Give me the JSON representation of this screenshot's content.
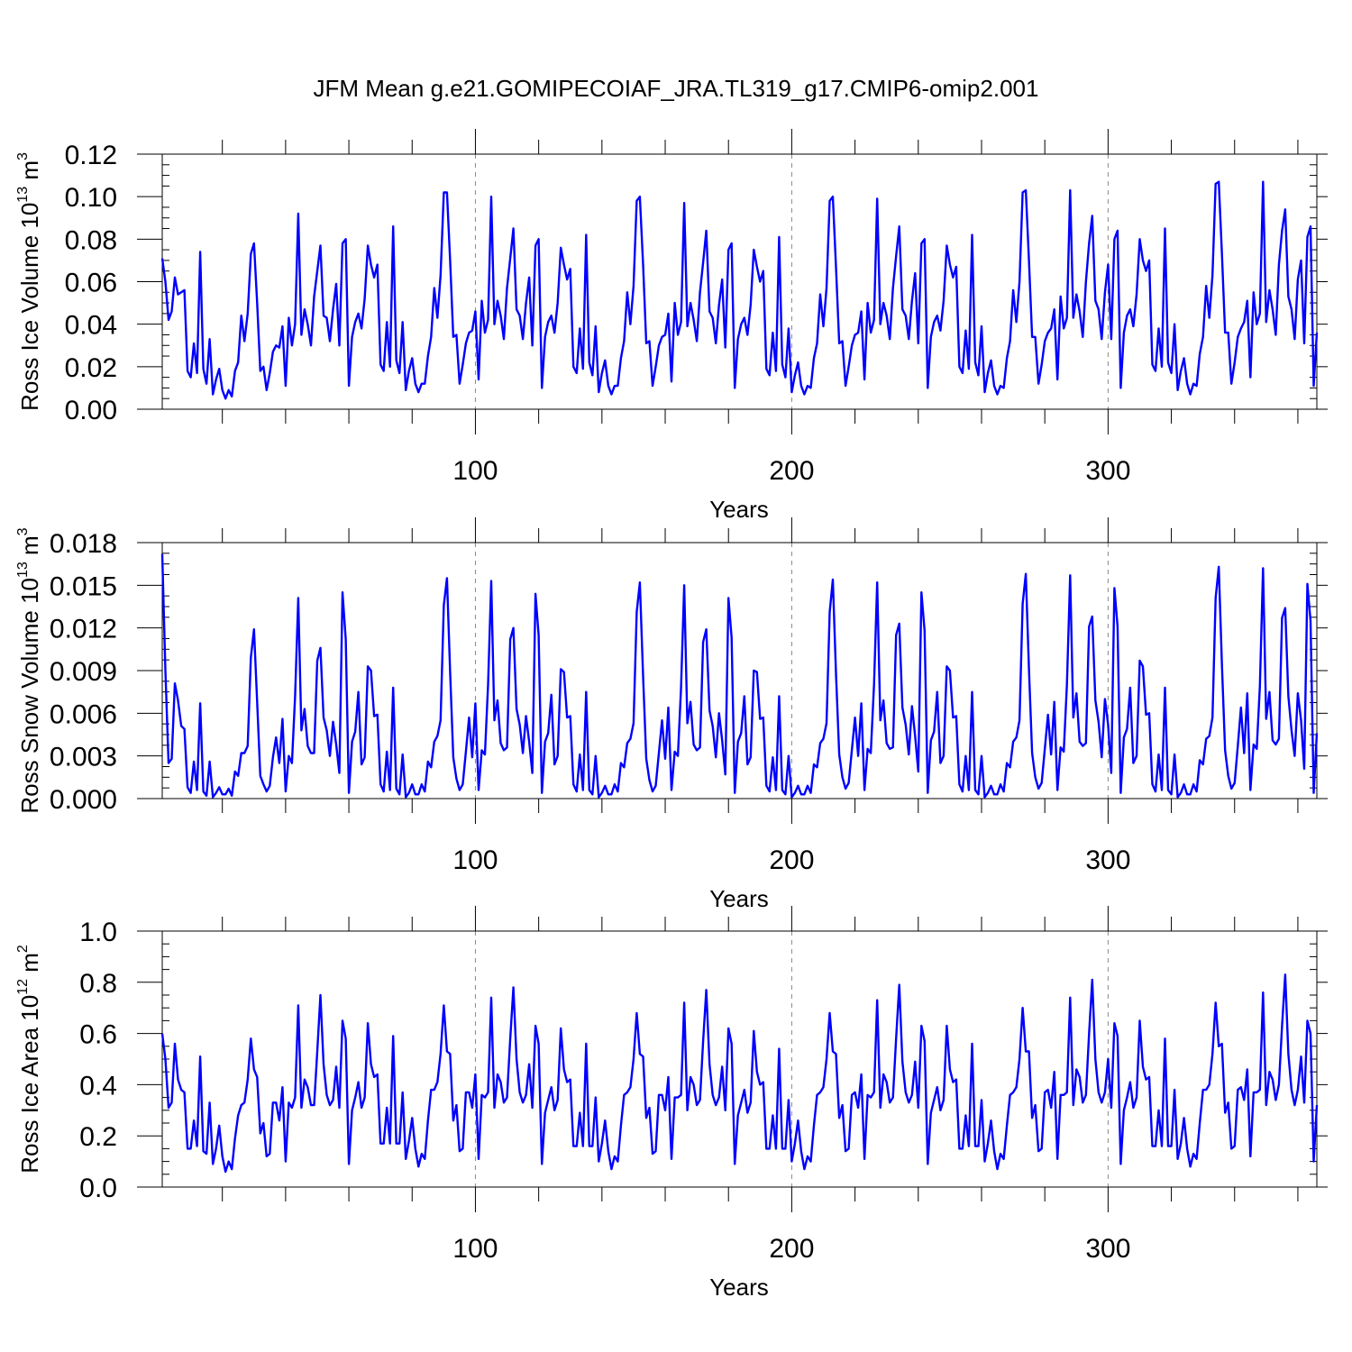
{
  "title": "JFM Mean g.e21.GOMIPECOIAF_JRA.TL319_g17.CMIP6-omip2.001",
  "chart_data": [
    {
      "type": "line",
      "xlabel": "Years",
      "ylabel": "Ross Ice Volume 10",
      "ylabel_sup": "13",
      "ylabel_unit": " m",
      "ylabel_unit_sup": "3",
      "xlim": [
        1,
        366
      ],
      "ylim": [
        0,
        0.12
      ],
      "yticks": [
        "0.00",
        "0.02",
        "0.04",
        "0.06",
        "0.08",
        "0.10",
        "0.12"
      ],
      "xticks": [
        "100",
        "200",
        "300"
      ],
      "color": "#0000ff",
      "values": [
        0.071,
        0.06,
        0.042,
        0.046,
        0.062,
        0.054,
        0.055,
        0.056,
        0.018,
        0.015,
        0.031,
        0.017,
        0.074,
        0.019,
        0.012,
        0.033,
        0.007,
        0.014,
        0.019,
        0.009,
        0.005,
        0.009,
        0.006,
        0.018,
        0.022,
        0.044,
        0.032,
        0.045,
        0.073,
        0.078,
        0.05,
        0.018,
        0.02,
        0.009,
        0.017,
        0.027,
        0.03,
        0.029,
        0.039,
        0.011,
        0.043,
        0.03,
        0.04,
        0.092,
        0.035,
        0.047,
        0.04,
        0.03,
        0.053,
        0.065,
        0.077,
        0.044,
        0.043,
        0.032,
        0.047,
        0.059,
        0.03,
        0.078,
        0.08,
        0.011,
        0.034,
        0.041,
        0.045,
        0.038,
        0.052,
        0.077,
        0.068,
        0.062,
        0.068,
        0.021,
        0.018,
        0.041,
        0.02,
        0.086,
        0.023,
        0.017,
        0.041,
        0.009,
        0.018,
        0.024,
        0.012,
        0.008,
        0.012,
        0.012,
        0.025,
        0.034,
        0.057,
        0.043,
        0.063,
        0.102,
        0.102,
        0.07,
        0.034,
        0.035,
        0.012,
        0.021,
        0.031,
        0.036,
        0.037,
        0.046,
        0.014,
        0.051,
        0.036,
        0.042,
        0.1,
        0.04,
        0.051,
        0.044,
        0.033,
        0.057,
        0.071,
        0.085,
        0.047,
        0.044,
        0.033,
        0.05,
        0.062,
        0.03,
        0.077,
        0.08,
        0.01,
        0.034,
        0.041,
        0.044,
        0.036,
        0.05,
        0.076,
        0.068,
        0.061,
        0.066,
        0.02,
        0.017,
        0.038,
        0.019,
        0.082,
        0.022,
        0.016,
        0.039,
        0.008,
        0.017,
        0.023,
        0.011,
        0.007,
        0.011,
        0.011,
        0.024,
        0.032,
        0.055,
        0.04,
        0.058,
        0.098,
        0.1,
        0.068,
        0.031,
        0.032,
        0.011,
        0.02,
        0.03,
        0.034,
        0.035,
        0.045,
        0.013,
        0.05,
        0.035,
        0.041,
        0.097,
        0.039,
        0.05,
        0.042,
        0.032,
        0.055,
        0.069,
        0.084,
        0.046,
        0.043,
        0.031,
        0.049,
        0.061,
        0.029,
        0.075,
        0.078,
        0.01,
        0.033,
        0.04,
        0.043,
        0.035,
        0.049,
        0.075,
        0.067,
        0.06,
        0.065,
        0.019,
        0.016,
        0.036,
        0.018,
        0.081,
        0.021,
        0.015,
        0.038,
        0.008,
        0.016,
        0.022,
        0.011,
        0.007,
        0.011,
        0.01,
        0.024,
        0.031,
        0.054,
        0.039,
        0.057,
        0.098,
        0.1,
        0.067,
        0.031,
        0.032,
        0.011,
        0.02,
        0.03,
        0.035,
        0.036,
        0.046,
        0.014,
        0.05,
        0.036,
        0.042,
        0.099,
        0.04,
        0.05,
        0.044,
        0.033,
        0.057,
        0.072,
        0.086,
        0.047,
        0.044,
        0.033,
        0.051,
        0.064,
        0.031,
        0.078,
        0.08,
        0.01,
        0.034,
        0.041,
        0.044,
        0.037,
        0.051,
        0.077,
        0.068,
        0.062,
        0.067,
        0.02,
        0.017,
        0.037,
        0.019,
        0.082,
        0.022,
        0.016,
        0.039,
        0.008,
        0.017,
        0.023,
        0.011,
        0.007,
        0.011,
        0.01,
        0.024,
        0.032,
        0.056,
        0.041,
        0.06,
        0.102,
        0.103,
        0.07,
        0.034,
        0.034,
        0.012,
        0.021,
        0.032,
        0.036,
        0.038,
        0.047,
        0.014,
        0.053,
        0.038,
        0.043,
        0.103,
        0.043,
        0.054,
        0.046,
        0.034,
        0.06,
        0.078,
        0.091,
        0.051,
        0.047,
        0.033,
        0.055,
        0.068,
        0.033,
        0.08,
        0.084,
        0.01,
        0.036,
        0.044,
        0.047,
        0.039,
        0.054,
        0.08,
        0.07,
        0.065,
        0.07,
        0.021,
        0.018,
        0.038,
        0.02,
        0.085,
        0.022,
        0.017,
        0.04,
        0.009,
        0.018,
        0.024,
        0.012,
        0.007,
        0.012,
        0.011,
        0.026,
        0.034,
        0.058,
        0.043,
        0.063,
        0.106,
        0.107,
        0.073,
        0.036,
        0.036,
        0.012,
        0.022,
        0.034,
        0.038,
        0.041,
        0.051,
        0.015,
        0.055,
        0.04,
        0.045,
        0.107,
        0.041,
        0.056,
        0.047,
        0.035,
        0.068,
        0.084,
        0.094,
        0.053,
        0.047,
        0.033,
        0.061,
        0.07,
        0.031,
        0.081,
        0.086,
        0.011,
        0.036
      ]
    },
    {
      "type": "line",
      "xlabel": "Years",
      "ylabel": "Ross Snow Volume 10",
      "ylabel_sup": "13",
      "ylabel_unit": " m",
      "ylabel_unit_sup": "3",
      "xlim": [
        1,
        366
      ],
      "ylim": [
        0,
        0.018
      ],
      "yticks": [
        "0.000",
        "0.003",
        "0.006",
        "0.009",
        "0.012",
        "0.015",
        "0.018"
      ],
      "xticks": [
        "100",
        "200",
        "300"
      ],
      "color": "#0000ff",
      "values": [
        0.0172,
        0.009,
        0.0025,
        0.0028,
        0.0081,
        0.0069,
        0.0051,
        0.0049,
        0.0008,
        0.0004,
        0.0026,
        0.0006,
        0.0067,
        0.0005,
        0.0002,
        0.0026,
        0.0001,
        0.0004,
        0.0008,
        0.0003,
        0.0003,
        0.0007,
        0.0002,
        0.0019,
        0.0016,
        0.0032,
        0.0032,
        0.0037,
        0.0099,
        0.0119,
        0.0068,
        0.0016,
        0.001,
        0.0005,
        0.0009,
        0.0029,
        0.0043,
        0.0025,
        0.0056,
        0.0005,
        0.003,
        0.0025,
        0.0072,
        0.0141,
        0.0048,
        0.0063,
        0.0037,
        0.0032,
        0.0032,
        0.0097,
        0.0106,
        0.0057,
        0.0048,
        0.003,
        0.0054,
        0.0038,
        0.0018,
        0.0145,
        0.0112,
        0.0004,
        0.004,
        0.0047,
        0.0075,
        0.0024,
        0.0029,
        0.0093,
        0.009,
        0.0058,
        0.0059,
        0.001,
        0.0005,
        0.0033,
        0.0006,
        0.0078,
        0.0007,
        0.0003,
        0.0031,
        0.0001,
        0.0004,
        0.001,
        0.0003,
        0.0003,
        0.001,
        0.0005,
        0.0026,
        0.0022,
        0.004,
        0.0044,
        0.0055,
        0.0136,
        0.0155,
        0.0089,
        0.0029,
        0.0014,
        0.0006,
        0.001,
        0.0033,
        0.0057,
        0.0029,
        0.0067,
        0.0006,
        0.0034,
        0.0031,
        0.008,
        0.0153,
        0.0055,
        0.0069,
        0.0039,
        0.0034,
        0.0036,
        0.0112,
        0.012,
        0.0063,
        0.0052,
        0.0032,
        0.0058,
        0.004,
        0.0018,
        0.0144,
        0.0115,
        0.0004,
        0.004,
        0.0046,
        0.0073,
        0.0024,
        0.003,
        0.0091,
        0.0089,
        0.0057,
        0.0058,
        0.001,
        0.0005,
        0.0031,
        0.0006,
        0.0075,
        0.0006,
        0.0003,
        0.003,
        0.0001,
        0.0004,
        0.0009,
        0.0003,
        0.0003,
        0.001,
        0.0005,
        0.0025,
        0.0022,
        0.0039,
        0.0042,
        0.0053,
        0.0131,
        0.0152,
        0.0086,
        0.0028,
        0.0013,
        0.0005,
        0.0009,
        0.0032,
        0.0055,
        0.0028,
        0.0064,
        0.0006,
        0.0033,
        0.003,
        0.0078,
        0.015,
        0.0053,
        0.0068,
        0.0038,
        0.0034,
        0.0036,
        0.011,
        0.0119,
        0.0062,
        0.0051,
        0.0029,
        0.006,
        0.0041,
        0.0017,
        0.0141,
        0.0113,
        0.0004,
        0.004,
        0.0046,
        0.0072,
        0.0024,
        0.0029,
        0.009,
        0.0089,
        0.0056,
        0.0057,
        0.0009,
        0.0005,
        0.0029,
        0.0006,
        0.0072,
        0.0006,
        0.0003,
        0.003,
        0.0001,
        0.0004,
        0.0009,
        0.0003,
        0.0003,
        0.0009,
        0.0004,
        0.0024,
        0.0022,
        0.0039,
        0.0042,
        0.0053,
        0.0131,
        0.0154,
        0.0088,
        0.0031,
        0.0015,
        0.0007,
        0.0011,
        0.0034,
        0.0057,
        0.003,
        0.0067,
        0.0006,
        0.0035,
        0.0032,
        0.008,
        0.0152,
        0.0055,
        0.0069,
        0.0039,
        0.0035,
        0.0036,
        0.0115,
        0.0123,
        0.0064,
        0.0052,
        0.0031,
        0.0065,
        0.0044,
        0.0019,
        0.0145,
        0.0118,
        0.0004,
        0.0041,
        0.0047,
        0.0075,
        0.0025,
        0.003,
        0.0093,
        0.009,
        0.0057,
        0.0058,
        0.001,
        0.0005,
        0.003,
        0.0006,
        0.0075,
        0.0006,
        0.0003,
        0.003,
        0.0001,
        0.0004,
        0.0009,
        0.0003,
        0.0003,
        0.001,
        0.0005,
        0.0025,
        0.0022,
        0.004,
        0.0043,
        0.0055,
        0.0137,
        0.0158,
        0.0091,
        0.0032,
        0.0015,
        0.0007,
        0.0011,
        0.0035,
        0.0059,
        0.0031,
        0.0068,
        0.0006,
        0.0036,
        0.0033,
        0.008,
        0.0157,
        0.0057,
        0.0074,
        0.004,
        0.0037,
        0.0039,
        0.0121,
        0.0128,
        0.0069,
        0.0054,
        0.0029,
        0.007,
        0.0052,
        0.0018,
        0.0148,
        0.0121,
        0.0004,
        0.0043,
        0.0049,
        0.0078,
        0.0025,
        0.003,
        0.0097,
        0.0093,
        0.0059,
        0.006,
        0.001,
        0.0005,
        0.0031,
        0.0006,
        0.0078,
        0.0006,
        0.0003,
        0.0031,
        0.0001,
        0.0004,
        0.001,
        0.0003,
        0.0003,
        0.001,
        0.0005,
        0.0027,
        0.0024,
        0.0042,
        0.0044,
        0.0057,
        0.0141,
        0.0163,
        0.0094,
        0.0034,
        0.0016,
        0.0007,
        0.0011,
        0.0037,
        0.0064,
        0.0032,
        0.0074,
        0.0006,
        0.0038,
        0.0035,
        0.0079,
        0.0162,
        0.0056,
        0.0075,
        0.0041,
        0.0038,
        0.0042,
        0.0127,
        0.0134,
        0.0072,
        0.0048,
        0.003,
        0.0074,
        0.0055,
        0.0021,
        0.0151,
        0.0125,
        0.0004,
        0.0046
      ]
    },
    {
      "type": "line",
      "xlabel": "Years",
      "ylabel": "Ross Ice Area 10",
      "ylabel_sup": "12",
      "ylabel_unit": " m",
      "ylabel_unit_sup": "2",
      "xlim": [
        1,
        366
      ],
      "ylim": [
        0,
        1.0
      ],
      "yticks": [
        "0.0",
        "0.2",
        "0.4",
        "0.6",
        "0.8",
        "1.0"
      ],
      "xticks": [
        "100",
        "200",
        "300"
      ],
      "color": "#0000ff",
      "values": [
        0.6,
        0.5,
        0.31,
        0.33,
        0.56,
        0.42,
        0.38,
        0.37,
        0.15,
        0.15,
        0.26,
        0.16,
        0.51,
        0.14,
        0.13,
        0.33,
        0.09,
        0.15,
        0.24,
        0.12,
        0.06,
        0.1,
        0.07,
        0.19,
        0.28,
        0.32,
        0.33,
        0.42,
        0.58,
        0.46,
        0.43,
        0.21,
        0.25,
        0.12,
        0.13,
        0.33,
        0.33,
        0.26,
        0.39,
        0.1,
        0.33,
        0.31,
        0.35,
        0.71,
        0.31,
        0.42,
        0.39,
        0.32,
        0.32,
        0.53,
        0.75,
        0.48,
        0.36,
        0.32,
        0.34,
        0.47,
        0.31,
        0.65,
        0.58,
        0.09,
        0.3,
        0.35,
        0.41,
        0.31,
        0.35,
        0.64,
        0.48,
        0.43,
        0.44,
        0.17,
        0.17,
        0.31,
        0.17,
        0.59,
        0.17,
        0.17,
        0.37,
        0.11,
        0.18,
        0.27,
        0.15,
        0.08,
        0.13,
        0.11,
        0.26,
        0.38,
        0.38,
        0.41,
        0.52,
        0.71,
        0.53,
        0.52,
        0.26,
        0.32,
        0.14,
        0.15,
        0.37,
        0.37,
        0.31,
        0.44,
        0.11,
        0.36,
        0.35,
        0.37,
        0.74,
        0.31,
        0.44,
        0.41,
        0.33,
        0.35,
        0.58,
        0.78,
        0.5,
        0.37,
        0.33,
        0.36,
        0.48,
        0.31,
        0.63,
        0.56,
        0.09,
        0.29,
        0.34,
        0.39,
        0.3,
        0.34,
        0.62,
        0.46,
        0.41,
        0.42,
        0.16,
        0.16,
        0.29,
        0.16,
        0.56,
        0.16,
        0.16,
        0.35,
        0.1,
        0.17,
        0.26,
        0.14,
        0.07,
        0.12,
        0.1,
        0.24,
        0.36,
        0.37,
        0.39,
        0.5,
        0.68,
        0.52,
        0.51,
        0.27,
        0.31,
        0.13,
        0.14,
        0.36,
        0.36,
        0.3,
        0.43,
        0.11,
        0.35,
        0.35,
        0.36,
        0.72,
        0.3,
        0.43,
        0.4,
        0.32,
        0.34,
        0.57,
        0.77,
        0.48,
        0.36,
        0.32,
        0.35,
        0.47,
        0.3,
        0.62,
        0.56,
        0.09,
        0.28,
        0.33,
        0.38,
        0.29,
        0.33,
        0.61,
        0.45,
        0.4,
        0.41,
        0.15,
        0.15,
        0.28,
        0.15,
        0.54,
        0.15,
        0.15,
        0.34,
        0.1,
        0.17,
        0.26,
        0.14,
        0.07,
        0.12,
        0.1,
        0.24,
        0.36,
        0.37,
        0.39,
        0.5,
        0.68,
        0.53,
        0.52,
        0.27,
        0.32,
        0.14,
        0.15,
        0.36,
        0.37,
        0.31,
        0.44,
        0.11,
        0.36,
        0.35,
        0.37,
        0.73,
        0.31,
        0.44,
        0.41,
        0.33,
        0.35,
        0.58,
        0.79,
        0.49,
        0.37,
        0.33,
        0.36,
        0.49,
        0.31,
        0.63,
        0.57,
        0.09,
        0.29,
        0.34,
        0.39,
        0.3,
        0.34,
        0.63,
        0.46,
        0.41,
        0.42,
        0.15,
        0.15,
        0.28,
        0.16,
        0.56,
        0.16,
        0.16,
        0.34,
        0.1,
        0.17,
        0.26,
        0.14,
        0.07,
        0.13,
        0.11,
        0.24,
        0.36,
        0.37,
        0.39,
        0.5,
        0.7,
        0.53,
        0.53,
        0.27,
        0.32,
        0.14,
        0.15,
        0.37,
        0.38,
        0.31,
        0.45,
        0.11,
        0.36,
        0.36,
        0.37,
        0.74,
        0.32,
        0.46,
        0.43,
        0.33,
        0.36,
        0.6,
        0.81,
        0.5,
        0.37,
        0.33,
        0.37,
        0.5,
        0.31,
        0.64,
        0.59,
        0.09,
        0.3,
        0.35,
        0.41,
        0.31,
        0.35,
        0.65,
        0.47,
        0.42,
        0.43,
        0.16,
        0.16,
        0.3,
        0.16,
        0.58,
        0.16,
        0.16,
        0.38,
        0.11,
        0.17,
        0.27,
        0.15,
        0.08,
        0.13,
        0.11,
        0.25,
        0.38,
        0.38,
        0.4,
        0.52,
        0.72,
        0.55,
        0.56,
        0.29,
        0.33,
        0.15,
        0.16,
        0.38,
        0.39,
        0.34,
        0.46,
        0.12,
        0.37,
        0.37,
        0.38,
        0.76,
        0.32,
        0.45,
        0.42,
        0.34,
        0.4,
        0.63,
        0.83,
        0.52,
        0.38,
        0.32,
        0.38,
        0.51,
        0.33,
        0.65,
        0.6,
        0.1,
        0.32
      ]
    }
  ]
}
